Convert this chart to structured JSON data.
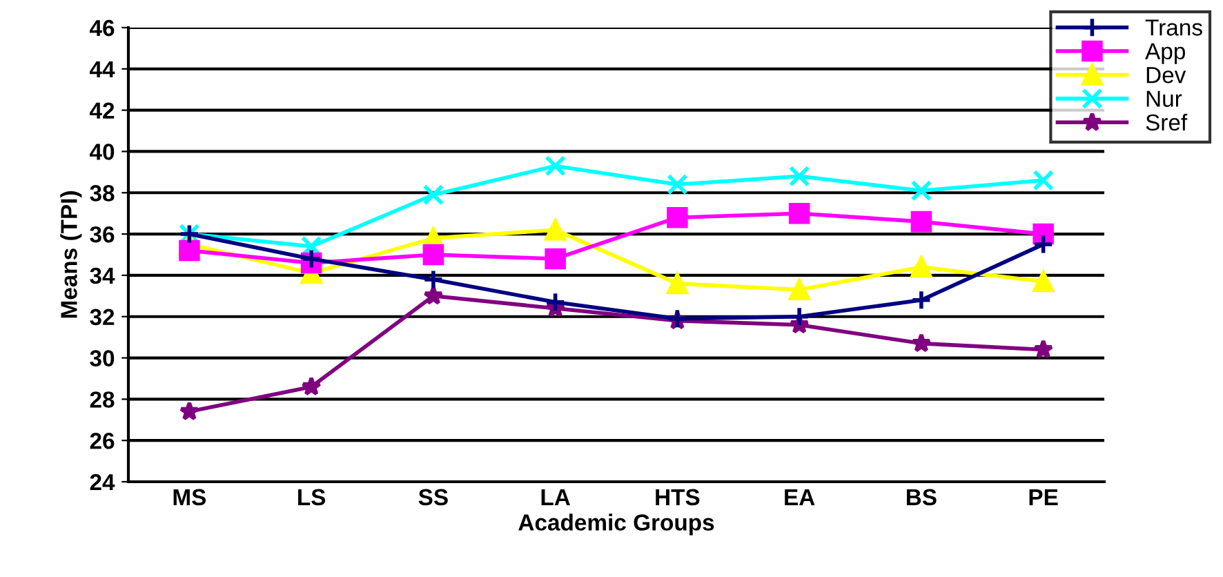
{
  "chart_data": {
    "type": "line",
    "xlabel": "Academic Groups",
    "ylabel": "Means (TPI)",
    "categories": [
      "MS",
      "LS",
      "SS",
      "LA",
      "HTS",
      "EA",
      "BS",
      "PE"
    ],
    "series": [
      {
        "name": "Trans",
        "color": "#000080",
        "marker": "plus",
        "values": [
          36.0,
          34.8,
          33.8,
          32.7,
          31.9,
          32.0,
          32.8,
          35.5
        ]
      },
      {
        "name": "App",
        "color": "#ff00ff",
        "marker": "square",
        "values": [
          35.2,
          34.6,
          35.0,
          34.8,
          36.8,
          37.0,
          36.6,
          36.0
        ]
      },
      {
        "name": "Dev",
        "color": "#ffff00",
        "marker": "triangle",
        "values": [
          35.5,
          34.1,
          35.8,
          36.2,
          33.6,
          33.3,
          34.4,
          33.7
        ]
      },
      {
        "name": "Nur",
        "color": "#00ffff",
        "marker": "cross",
        "values": [
          36.0,
          35.4,
          37.9,
          39.3,
          38.4,
          38.8,
          38.1,
          38.6
        ]
      },
      {
        "name": "Sref",
        "color": "#800080",
        "marker": "star",
        "values": [
          27.4,
          28.6,
          33.0,
          32.4,
          31.8,
          31.6,
          30.7,
          30.4
        ]
      }
    ],
    "ylim": [
      24,
      46
    ],
    "yticks": [
      24,
      26,
      28,
      30,
      32,
      34,
      36,
      38,
      40,
      42,
      44,
      46
    ],
    "grid": "y",
    "legend": "top right"
  }
}
